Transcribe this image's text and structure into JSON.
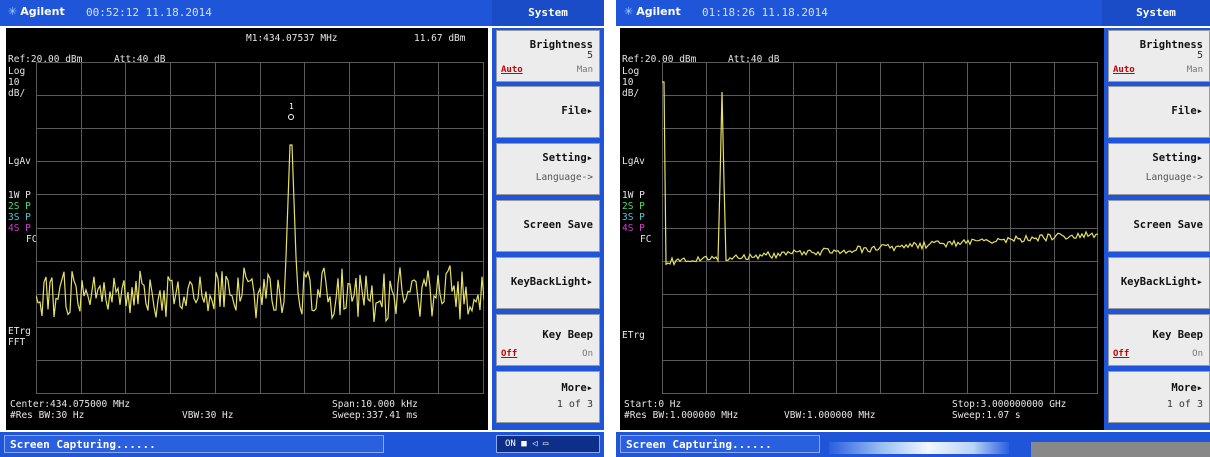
{
  "left": {
    "brand": "Agilent",
    "clock": "00:52:12  11.18.2014",
    "menu_title": "System",
    "ref": "Ref:20.00 dBm",
    "att": "Att:40 dB",
    "marker": "M1:434.07537 MHz",
    "marker_level": "11.67 dBm",
    "marker_num": "1",
    "side_labels": [
      "Log",
      "10",
      "dB/",
      "LgAv",
      "1W  P",
      "2S  P",
      "3S  P",
      "4S  P",
      "FC",
      "ETrg",
      "FFT"
    ],
    "center": "Center:434.075000 MHz",
    "span": "Span:10.000 kHz",
    "res_bw": "#Res BW:30 Hz",
    "vbw": "VBW:30 Hz",
    "sweep": "Sweep:337.41 ms",
    "status": "Screen Capturing......",
    "indicator": "ON  ■  ◁ ▭",
    "softkeys": {
      "brightness": "Brightness",
      "brightness_value": "5",
      "auto": "Auto",
      "man": "Man",
      "file": "File▸",
      "setting": "Setting▸",
      "language": "Language->",
      "screen_save": "Screen Save",
      "keybacklight": "KeyBackLight▸",
      "key_beep": "Key Beep",
      "off": "Off",
      "on": "On",
      "more": "More▸",
      "page": "1 of 3"
    }
  },
  "right": {
    "brand": "Agilent",
    "clock": "01:18:26  11.18.2014",
    "menu_title": "System",
    "ref": "Ref:20.00 dBm",
    "att": "Att:40 dB",
    "side_labels": [
      "Log",
      "10",
      "dB/",
      "LgAv",
      "1W  P",
      "2S  P",
      "3S  P",
      "4S  P",
      "FC",
      "ETrg"
    ],
    "start": "Start:0 Hz",
    "stop": "Stop:3.000000000 GHz",
    "res_bw": "#Res BW:1.000000 MHz",
    "vbw": "VBW:1.000000 MHz",
    "sweep": "Sweep:1.07 s",
    "status": "Screen Capturing......",
    "softkeys": {
      "brightness": "Brightness",
      "brightness_value": "5",
      "auto": "Auto",
      "man": "Man",
      "file": "File▸",
      "setting": "Setting▸",
      "language": "Language->",
      "screen_save": "Screen Save",
      "keybacklight": "KeyBackLight▸",
      "key_beep": "Key Beep",
      "off": "Off",
      "on": "On",
      "more": "More▸",
      "page": "1 of 3"
    }
  },
  "colors": {
    "trace": "#e6e065",
    "grid": "#5a5a5a",
    "frame_blue": "#1f55d9"
  }
}
